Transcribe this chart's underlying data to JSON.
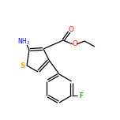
{
  "background_color": "#ffffff",
  "bond_color": "#000000",
  "atom_colors": {
    "S": "#ffa500",
    "N": "#0000ff",
    "O": "#ff0000",
    "F": "#008000",
    "C": "#000000"
  },
  "figsize": [
    1.52,
    1.52
  ],
  "dpi": 100,
  "note": "All coords in image pixels (0,0)=top-left; converted to plot coords by y_plot = 152 - y_img"
}
